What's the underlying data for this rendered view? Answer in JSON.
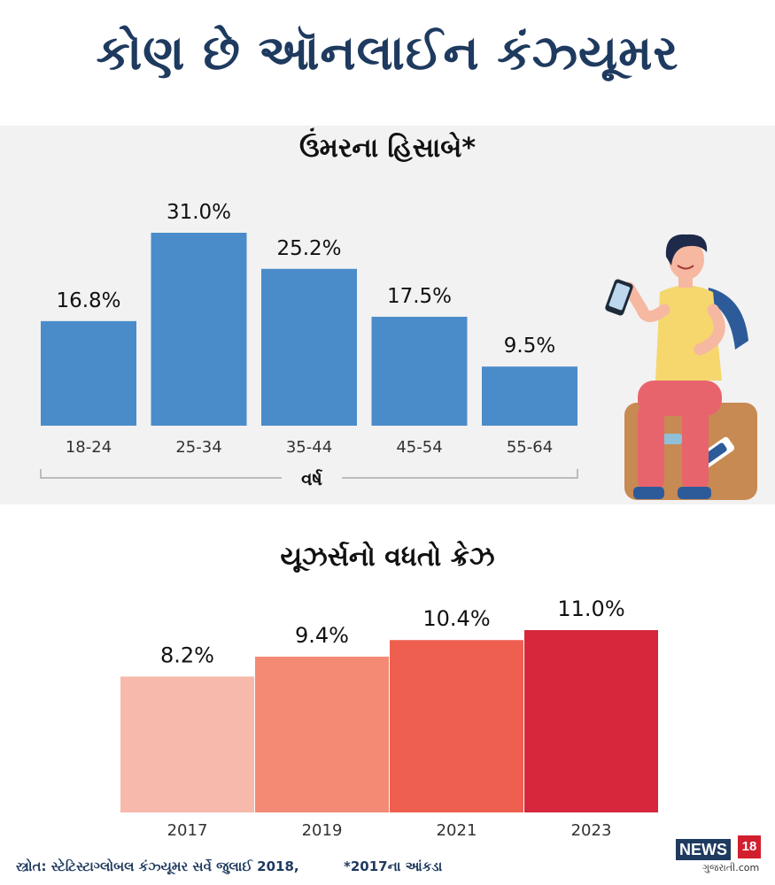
{
  "title": "કોણ છે ઑનલાઈન કંઝ્યૂમર",
  "colors": {
    "title": "#1e3a5f",
    "age_bar": "#4a8cc9",
    "growth_bars": [
      "#f7b9ac",
      "#f48a74",
      "#ee5f4f",
      "#d6273d"
    ]
  },
  "chart_data": [
    {
      "type": "bar",
      "title": "ઉંમરના હિસાબે*",
      "xlabel": "વર્ષ",
      "categories": [
        "18-24",
        "25-34",
        "35-44",
        "45-54",
        "55-64"
      ],
      "values": [
        16.8,
        31.0,
        25.2,
        17.5,
        9.5
      ],
      "value_labels": [
        "16.8%",
        "31.0%",
        "25.2%",
        "17.5%",
        "9.5%"
      ]
    },
    {
      "type": "bar",
      "title": "યૂઝર્સનો વધતો ક્રેઝ",
      "categories": [
        "2017",
        "2019",
        "2021",
        "2023"
      ],
      "values": [
        8.2,
        9.4,
        10.4,
        11.0
      ],
      "value_labels": [
        "8.2%",
        "9.4%",
        "10.4%",
        "11.0%"
      ]
    }
  ],
  "footer": {
    "source": "સ્ત્રોત: સ્ટેટિસ્ટાગ્લોબલ કંઝ્યૂમર સર્વે જુલાઈ 2018,",
    "note": "*2017ના આંકડા"
  },
  "logo": {
    "brand": "NEWS",
    "number": "18",
    "sub": "ગુજરાતી.com"
  }
}
